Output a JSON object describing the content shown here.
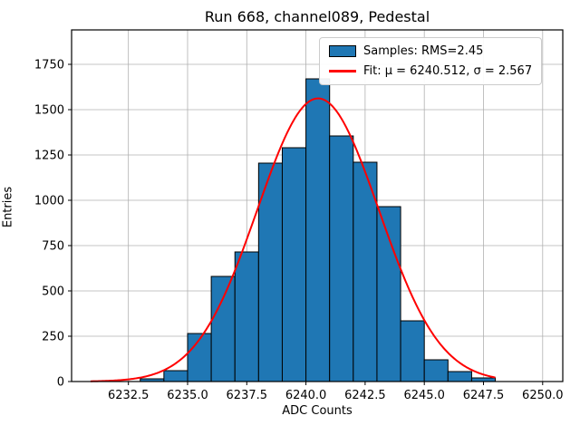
{
  "title": "Run 668, channel089, Pedestal",
  "xlabel": "ADC Counts",
  "ylabel": "Entries",
  "legend": {
    "samples_label": "Samples: RMS=2.45",
    "fit_label": "Fit: μ = 6240.512, σ = 2.567"
  },
  "colors": {
    "bar_fill": "#1f77b4",
    "bar_edge": "#000000",
    "fit_line": "#ff0000",
    "grid": "#b0b0b0",
    "spine": "#000000",
    "background": "#ffffff"
  },
  "chart_data": {
    "type": "histogram",
    "title": "Run 668, channel089, Pedestal",
    "xlabel": "ADC Counts",
    "ylabel": "Entries",
    "bin_edges": [
      6233,
      6234,
      6235,
      6236,
      6237,
      6238,
      6239,
      6240,
      6241,
      6242,
      6243,
      6244,
      6245,
      6246,
      6247,
      6248
    ],
    "counts": [
      15,
      60,
      265,
      580,
      715,
      1205,
      1290,
      1670,
      1355,
      1210,
      965,
      335,
      120,
      55,
      20
    ],
    "fit": {
      "mu": 6240.512,
      "sigma": 2.567,
      "amplitude": 1562,
      "x_start": 6230.9,
      "x_end": 6248.0
    },
    "xlim": [
      6230.1,
      6250.85
    ],
    "ylim": [
      0,
      1940
    ],
    "xticks": [
      6232.5,
      6235.0,
      6237.5,
      6240.0,
      6242.5,
      6245.0,
      6247.5,
      6250.0
    ],
    "yticks": [
      0,
      250,
      500,
      750,
      1000,
      1250,
      1500,
      1750
    ],
    "grid": true,
    "legend_position": "upper right",
    "legend_entries": [
      "Samples: RMS=2.45",
      "Fit: μ = 6240.512, σ = 2.567"
    ]
  }
}
